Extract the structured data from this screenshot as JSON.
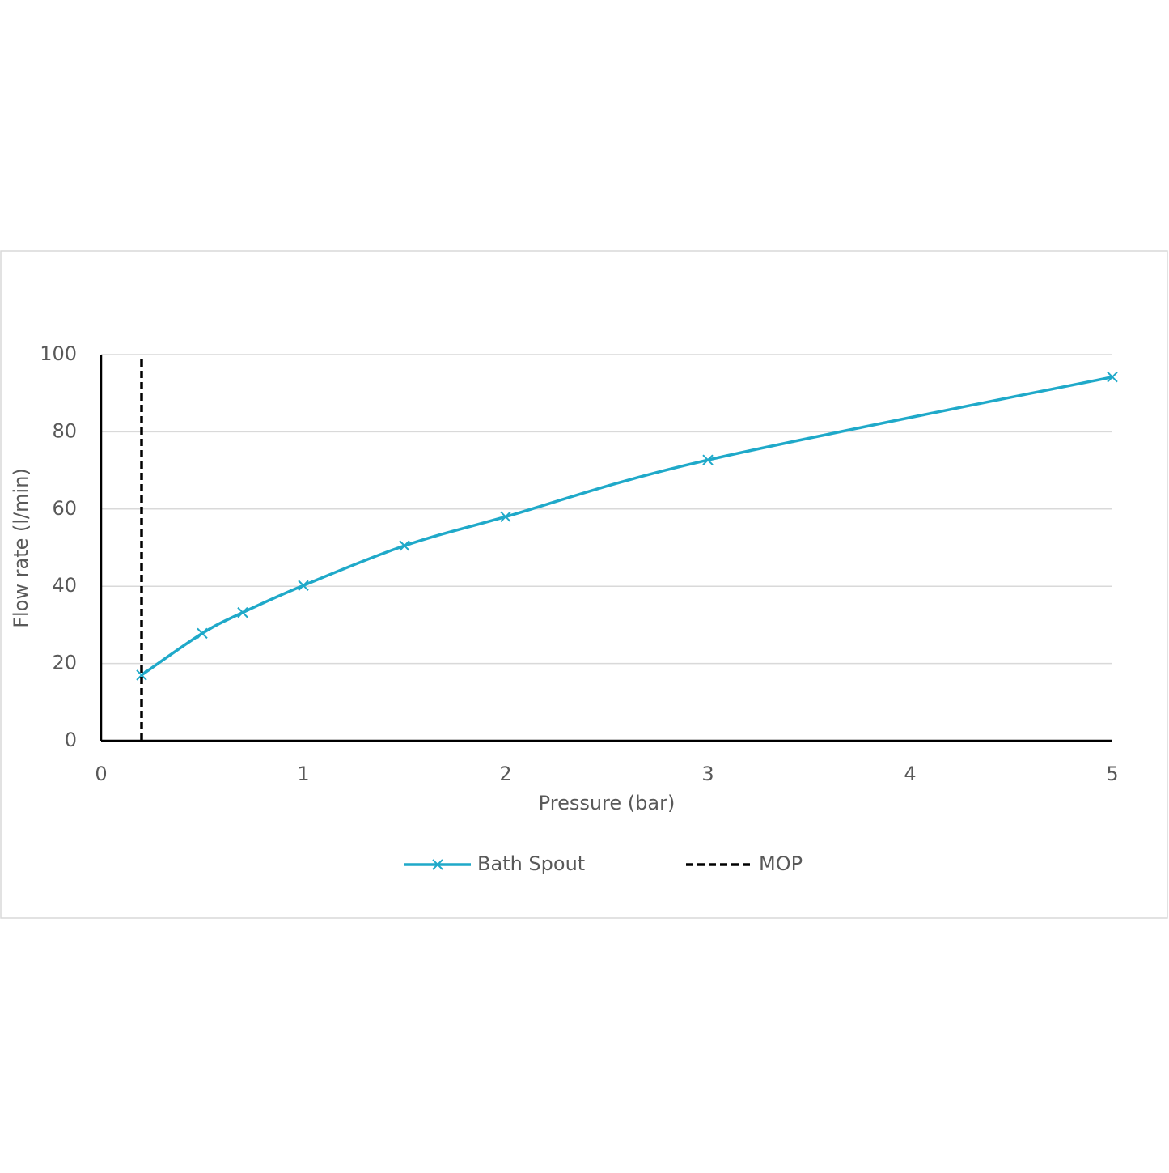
{
  "chart_data": {
    "type": "line",
    "xlabel": "Pressure (bar)",
    "ylabel": "Flow rate (l/min)",
    "xlim": [
      0,
      5
    ],
    "xticks": [
      0,
      1,
      2,
      3,
      4,
      5
    ],
    "ylim": [
      0,
      100
    ],
    "yticks": [
      0,
      20,
      40,
      60,
      80,
      100
    ],
    "grid": true,
    "smooth": true,
    "legend": "bottom",
    "series": [
      {
        "name": "Bath Spout",
        "color": "#1fa9c9",
        "marker": "x",
        "dash": "solid",
        "x": [
          0.2,
          0.5,
          0.7,
          1,
          1.5,
          2,
          3,
          5
        ],
        "values": [
          17,
          27.8,
          33.2,
          40.2,
          50.5,
          58,
          72.7,
          94.2
        ]
      },
      {
        "name": "MOP",
        "color": "#000000",
        "marker": "none",
        "dash": "dashed",
        "x": [
          0.2,
          0.2
        ],
        "values": [
          0,
          100
        ]
      }
    ]
  }
}
